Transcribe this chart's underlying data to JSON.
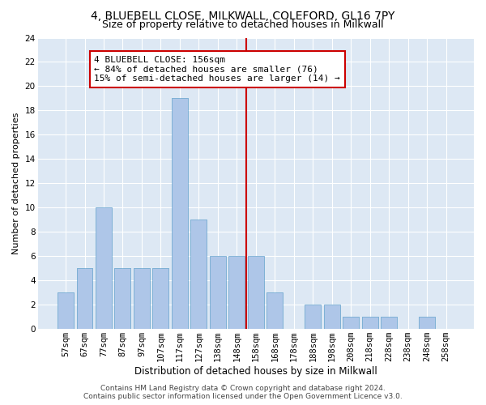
{
  "title1": "4, BLUEBELL CLOSE, MILKWALL, COLEFORD, GL16 7PY",
  "title2": "Size of property relative to detached houses in Milkwall",
  "xlabel": "Distribution of detached houses by size in Milkwall",
  "ylabel": "Number of detached properties",
  "categories": [
    "57sqm",
    "67sqm",
    "77sqm",
    "87sqm",
    "97sqm",
    "107sqm",
    "117sqm",
    "127sqm",
    "138sqm",
    "148sqm",
    "158sqm",
    "168sqm",
    "178sqm",
    "188sqm",
    "198sqm",
    "208sqm",
    "218sqm",
    "228sqm",
    "238sqm",
    "248sqm",
    "258sqm"
  ],
  "values": [
    3,
    5,
    10,
    5,
    5,
    5,
    19,
    9,
    6,
    6,
    6,
    3,
    0,
    2,
    2,
    1,
    1,
    1,
    0,
    1,
    0
  ],
  "bar_color": "#aec6e8",
  "bar_edge_color": "#7aafd4",
  "background_color": "#dde8f4",
  "grid_color": "#ffffff",
  "vline_x": 9.5,
  "vline_color": "#cc0000",
  "annotation_text": "4 BLUEBELL CLOSE: 156sqm\n← 84% of detached houses are smaller (76)\n15% of semi-detached houses are larger (14) →",
  "annotation_box_color": "#cc0000",
  "footer1": "Contains HM Land Registry data © Crown copyright and database right 2024.",
  "footer2": "Contains public sector information licensed under the Open Government Licence v3.0.",
  "ylim": [
    0,
    24
  ],
  "yticks": [
    0,
    2,
    4,
    6,
    8,
    10,
    12,
    14,
    16,
    18,
    20,
    22,
    24
  ],
  "title1_fontsize": 10,
  "title2_fontsize": 9,
  "xlabel_fontsize": 8.5,
  "ylabel_fontsize": 8,
  "tick_fontsize": 7.5,
  "annotation_fontsize": 8,
  "footer_fontsize": 6.5
}
